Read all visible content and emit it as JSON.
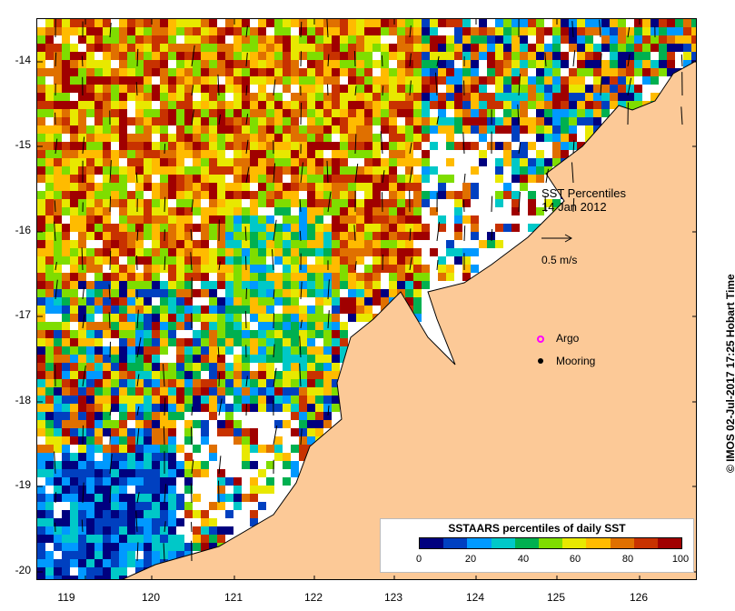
{
  "map": {
    "title_line1": "SST Percentiles",
    "title_line2": "14 Jan 2012",
    "velocity_scale_label": "0.5 m/s",
    "argo_label": "Argo",
    "mooring_label": "Mooring",
    "argo_color": "#ff00ff",
    "mooring_color": "#000000",
    "land_color": "#fcc997",
    "no_data_color": "#ffffff",
    "credit": "© IMOS 02-Jul-2017 17:25 Hobart Time",
    "lon_ticks": [
      "119",
      "120",
      "121",
      "122",
      "123",
      "124",
      "125",
      "126"
    ],
    "lat_ticks": [
      "-14",
      "-15",
      "-16",
      "-17",
      "-18",
      "-19",
      "-20"
    ]
  },
  "legend": {
    "title": "SSTAARS percentiles of daily SST",
    "tick_labels": [
      "0",
      "20",
      "40",
      "60",
      "80",
      "100"
    ],
    "colors": [
      "#00007f",
      "#0040c0",
      "#0099ff",
      "#00c8c8",
      "#00b050",
      "#7fdd00",
      "#e8e800",
      "#ffbb00",
      "#e07000",
      "#c83200",
      "#a00000"
    ]
  },
  "icons": {
    "argo": "open-circle-icon",
    "mooring": "filled-circle-icon",
    "velocity": "arrow-right-icon"
  }
}
